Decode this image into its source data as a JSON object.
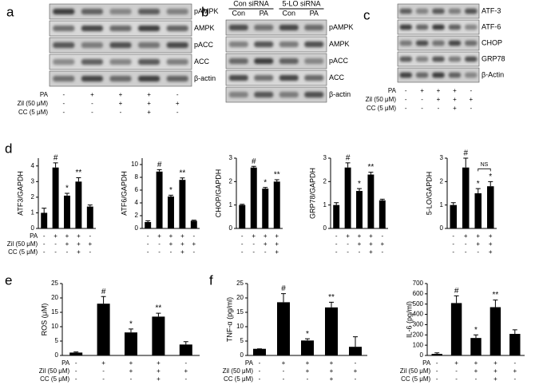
{
  "panel_labels": [
    "a",
    "b",
    "c",
    "d",
    "e",
    "f"
  ],
  "blots": [
    {
      "rows": [
        "pAMPK",
        "AMPK",
        "pACC",
        "ACC",
        "β-actin"
      ],
      "conditions": [
        {
          "name": "PA",
          "signs": [
            "-",
            "+",
            "+",
            "+",
            "-"
          ]
        },
        {
          "name": "Zil (50 μM)",
          "signs": [
            "-",
            "-",
            "+",
            "+",
            "+"
          ]
        },
        {
          "name": "CC (5 μM)",
          "signs": [
            "-",
            "-",
            "-",
            "+",
            "-"
          ]
        }
      ]
    },
    {
      "groups": [
        "Con siRNA",
        "5-LO siRNA"
      ],
      "lanes": [
        "Con",
        "PA",
        "Con",
        "PA"
      ],
      "rows": [
        "pAMPK",
        "AMPK",
        "pACC",
        "ACC",
        "β-actin"
      ]
    },
    {
      "rows": [
        "ATF-3",
        "ATF-6",
        "CHOP",
        "GRP78",
        "β-Actin"
      ],
      "conditions": [
        {
          "name": "PA",
          "signs": [
            "-",
            "+",
            "+",
            "+",
            "-"
          ]
        },
        {
          "name": "Zil (50 μM)",
          "signs": [
            "-",
            "-",
            "+",
            "+",
            "+"
          ]
        },
        {
          "name": "CC (5 μM)",
          "signs": [
            "-",
            "-",
            "-",
            "+",
            "-"
          ]
        }
      ]
    }
  ],
  "chart_data": [
    {
      "type": "bar",
      "ylabel": "ATF3/GAPDH",
      "values": [
        1.0,
        3.9,
        2.1,
        3.0,
        1.4
      ],
      "errors": [
        0.3,
        0.3,
        0.15,
        0.25,
        0.1
      ],
      "annotations": [
        null,
        "#",
        "*",
        "**",
        null
      ],
      "ylim": [
        0,
        4.5
      ],
      "yticks": [
        0,
        1,
        2,
        3,
        4
      ],
      "color": "#000000",
      "conditions": [
        {
          "name": "PA",
          "signs": [
            "-",
            "+",
            "+",
            "+",
            "-"
          ]
        },
        {
          "name": "Zil (50 μM)",
          "signs": [
            "-",
            "-",
            "+",
            "+",
            "+"
          ]
        },
        {
          "name": "CC (5 μM)",
          "signs": [
            "-",
            "-",
            "-",
            "+",
            "-"
          ]
        }
      ]
    },
    {
      "type": "bar",
      "ylabel": "ATF6/GAPDH",
      "values": [
        1.0,
        8.9,
        5.0,
        7.6,
        1.2
      ],
      "errors": [
        0.2,
        0.3,
        0.2,
        0.3,
        0.1
      ],
      "annotations": [
        null,
        "#",
        "*",
        "**",
        null
      ],
      "ylim": [
        0,
        11
      ],
      "yticks": [
        0,
        2,
        4,
        6,
        8,
        10
      ],
      "color": "#000000",
      "conditions": [
        {
          "signs": [
            "-",
            "+",
            "+",
            "+",
            "-"
          ]
        },
        {
          "signs": [
            "-",
            "-",
            "+",
            "+",
            "+"
          ]
        },
        {
          "signs": [
            "-",
            "-",
            "-",
            "+",
            "-"
          ]
        }
      ]
    },
    {
      "type": "bar",
      "ylabel": "CHOP/GAPDH",
      "values": [
        1.0,
        2.6,
        1.7,
        2.0
      ],
      "errors": [
        0.03,
        0.05,
        0.05,
        0.08
      ],
      "annotations": [
        null,
        "#",
        "*",
        "**"
      ],
      "ylim": [
        0,
        3
      ],
      "yticks": [
        0,
        1,
        2,
        3
      ],
      "color": "#000000",
      "conditions": [
        {
          "signs": [
            "-",
            "+",
            "+",
            "+"
          ]
        },
        {
          "signs": [
            "-",
            "-",
            "+",
            "+"
          ]
        },
        {
          "signs": [
            "-",
            "-",
            "-",
            "+"
          ]
        }
      ]
    },
    {
      "type": "bar",
      "ylabel": "GRP78/GAPDH",
      "values": [
        1.0,
        2.6,
        1.6,
        2.3,
        1.2
      ],
      "errors": [
        0.1,
        0.2,
        0.1,
        0.1,
        0.05
      ],
      "annotations": [
        null,
        "#",
        "*",
        "**",
        null
      ],
      "ylim": [
        0,
        3
      ],
      "yticks": [
        0,
        1,
        2,
        3
      ],
      "color": "#000000",
      "conditions": [
        {
          "signs": [
            "-",
            "+",
            "+",
            "+",
            "-"
          ]
        },
        {
          "signs": [
            "-",
            "-",
            "+",
            "+",
            "+"
          ]
        },
        {
          "signs": [
            "-",
            "-",
            "-",
            "+",
            "-"
          ]
        }
      ]
    },
    {
      "type": "bar",
      "ylabel": "5-LO/GAPDH",
      "values": [
        1.0,
        2.6,
        1.5,
        1.8
      ],
      "errors": [
        0.1,
        0.4,
        0.2,
        0.2
      ],
      "annotations": [
        null,
        "#",
        "*",
        "*"
      ],
      "bracket_text": "NS",
      "ylim": [
        0,
        3
      ],
      "yticks": [
        0,
        1,
        2,
        3
      ],
      "color": "#000000",
      "conditions": [
        {
          "signs": [
            "-",
            "+",
            "+",
            "+"
          ]
        },
        {
          "signs": [
            "-",
            "-",
            "+",
            "+"
          ]
        },
        {
          "signs": [
            "-",
            "-",
            "-",
            "+"
          ]
        }
      ]
    },
    {
      "type": "bar",
      "ylabel": "ROS (μM)",
      "values": [
        1,
        18,
        8,
        13.5,
        3.8
      ],
      "errors": [
        0.2,
        2.5,
        1.2,
        1.2,
        1
      ],
      "annotations": [
        null,
        "#",
        "*",
        "**",
        null
      ],
      "ylim": [
        0,
        25
      ],
      "yticks": [
        0,
        5,
        10,
        15,
        20,
        25
      ],
      "color": "#000000",
      "conditions": [
        {
          "name": "PA",
          "signs": [
            "-",
            "+",
            "+",
            "+",
            "-"
          ]
        },
        {
          "name": "Zil (50 μM)",
          "signs": [
            "-",
            "-",
            "+",
            "+",
            "+"
          ]
        },
        {
          "name": "CC (5 μM)",
          "signs": [
            "-",
            "-",
            "-",
            "+",
            "-"
          ]
        }
      ]
    },
    {
      "type": "bar",
      "ylabel": "TNF-α (pg/ml)",
      "values": [
        2.3,
        18.5,
        5.2,
        16.7,
        3.0
      ],
      "errors": [
        0,
        3,
        0.6,
        1.8,
        3.5
      ],
      "annotations": [
        null,
        "#",
        "*",
        "**",
        null
      ],
      "ylim": [
        0,
        25
      ],
      "yticks": [
        0,
        5,
        10,
        15,
        20,
        25
      ],
      "color": "#000000",
      "conditions": [
        {
          "name": "PA",
          "signs": [
            "-",
            "+",
            "+",
            "+",
            "-"
          ]
        },
        {
          "name": "Zil (50 μM)",
          "signs": [
            "-",
            "-",
            "+",
            "+",
            "+"
          ]
        },
        {
          "name": "CC (5 μM)",
          "signs": [
            "-",
            "-",
            "-",
            "+",
            "-"
          ]
        }
      ]
    },
    {
      "type": "bar",
      "ylabel": "IL-6 (pg/ml)",
      "values": [
        15,
        510,
        170,
        470,
        210
      ],
      "errors": [
        10,
        70,
        30,
        70,
        40
      ],
      "annotations": [
        null,
        "#",
        "*",
        "**",
        null
      ],
      "ylim": [
        0,
        700
      ],
      "yticks": [
        0,
        100,
        200,
        300,
        400,
        500,
        600,
        700
      ],
      "color": "#000000",
      "conditions": [
        {
          "name": "PA",
          "signs": [
            "-",
            "+",
            "+",
            "+",
            "-"
          ]
        },
        {
          "name": "Zil (50 μM)",
          "signs": [
            "-",
            "-",
            "+",
            "+",
            "+"
          ]
        },
        {
          "name": "CC (5 μM)",
          "signs": [
            "-",
            "-",
            "-",
            "+",
            "-"
          ]
        }
      ]
    }
  ]
}
